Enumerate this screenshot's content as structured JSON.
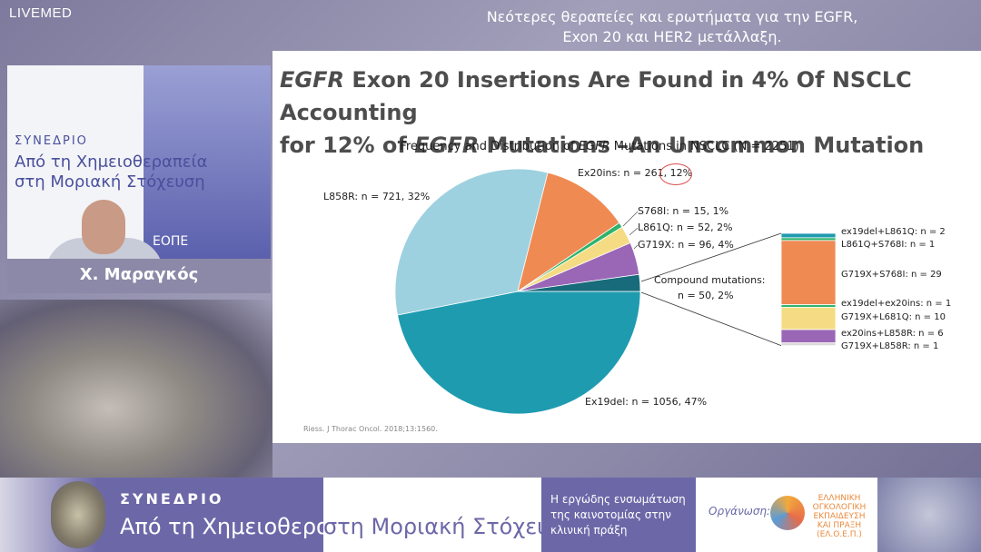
{
  "header": {
    "logo": "LIVEMED",
    "title_line1": "Νεότερες θεραπείες και ερωτήματα για την EGFR,",
    "title_line2": "Exon 20  και HER2 μετάλλαξη."
  },
  "video": {
    "speaker_name": "Χ. Μαραγκός",
    "banner_syn": "ΣΥΝΕΔΡΙΟ",
    "banner_line1": "Από τη Χημειοθεραπεία",
    "banner_line2": "στη Μοριακή Στόχευση",
    "banner_logo": "ΕΟΠΕ"
  },
  "slide": {
    "title_part1": "EGFR",
    "title_part2": " Exon 20 Insertions Are Found in 4% Of NSCLC Accounting",
    "title_part3": "for 12% of ",
    "title_part4": "EGFR",
    "title_part5": " Mutations –An Uncommon Mutation",
    "chart_title_a": "Frequency and Distribution of ",
    "chart_title_b": "EGFR",
    "chart_title_c": " Mutations in NSCLC (N = 2251)",
    "citation": "Riess. J Thorac Oncol. 2018;13:1560."
  },
  "chart_data": {
    "type": "pie",
    "title": "Frequency and Distribution of EGFR Mutations in NSCLC (N = 2251)",
    "slices": [
      {
        "name": "Ex19del",
        "n": 1056,
        "pct": 47,
        "label": "Ex19del: n = 1056, 47%",
        "color": "#1f9bb0"
      },
      {
        "name": "L858R",
        "n": 721,
        "pct": 32,
        "label": "L858R: n = 721, 32%",
        "color": "#9dd1df"
      },
      {
        "name": "Ex20ins",
        "n": 261,
        "pct": 12,
        "label": "Ex20ins: n = 261, 12%",
        "color": "#ef8a53"
      },
      {
        "name": "S768I",
        "n": 15,
        "pct": 1,
        "label": "S768I: n = 15, 1%",
        "color": "#2fb36a"
      },
      {
        "name": "L861Q",
        "n": 52,
        "pct": 2,
        "label": "L861Q: n = 52, 2%",
        "color": "#f5dc84"
      },
      {
        "name": "G719X",
        "n": 96,
        "pct": 4,
        "label": "G719X: n = 96, 4%",
        "color": "#9a66b6"
      },
      {
        "name": "Compound mutations",
        "n": 50,
        "pct": 2,
        "label": "Compound mutations:",
        "label2": "n = 50, 2%",
        "color": "#176b7a"
      }
    ],
    "compound_breakdown": [
      {
        "name": "ex19del+L861Q",
        "n": 2,
        "label": "ex19del+L861Q: n = 2",
        "color": "#1f9bb0"
      },
      {
        "name": "L861Q+S768I",
        "n": 1,
        "label": "L861Q+S768I: n = 1",
        "color": "#2fb36a"
      },
      {
        "name": "G719X+S768I",
        "n": 29,
        "label": "G719X+S768I: n = 29",
        "color": "#ef8a53"
      },
      {
        "name": "ex19del+ex20ins",
        "n": 1,
        "label": "ex19del+ex20ins: n = 1",
        "color": "#2fb36a"
      },
      {
        "name": "G719X+L681Q",
        "n": 10,
        "label": "G719X+L681Q: n = 10",
        "color": "#f5dc84"
      },
      {
        "name": "ex20ins+L858R",
        "n": 6,
        "label": "ex20ins+L858R: n = 6",
        "color": "#9a66b6"
      },
      {
        "name": "G719X+L858R",
        "n": 1,
        "label": "G719X+L858R: n = 1",
        "color": "#d9d9d9"
      }
    ]
  },
  "footer": {
    "syn_title": "ΣΥΝΕΔΡΙΟ",
    "conf_a": "Από τη Χημειοθεραπεία",
    "conf_b": " στη Μοριακή Στόχευση",
    "tagline": "Η εργώδης ενσωμάτωση της καινοτομίας στην κλινική πράξη",
    "org_label": "Οργάνωση:",
    "org_name": "ΕΛΛΗΝΙΚΗ ΟΓΚΟΛΟΓΙΚΗ ΕΚΠΑΙΔΕΥΣΗ ΚΑΙ ΠΡΑΞΗ (ΕΛ.Ο.Ε.Π.)"
  }
}
